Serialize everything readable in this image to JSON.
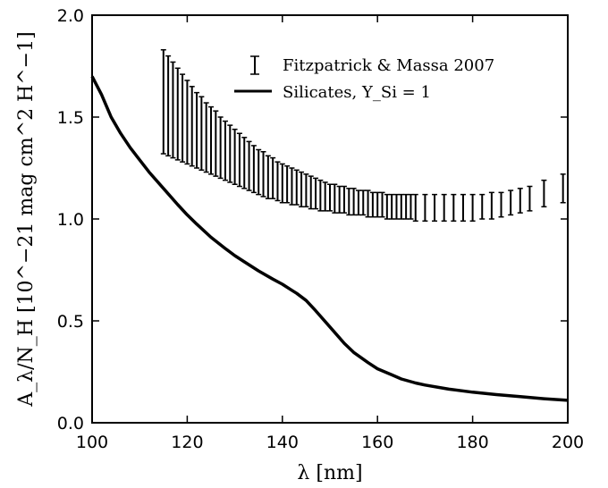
{
  "chart_data": {
    "type": "line",
    "xlabel": "λ [nm]",
    "ylabel": "A_λ/N_H [10^−21 mag cm^2 H^−1]",
    "xlim": [
      100,
      200
    ],
    "ylim": [
      0.0,
      2.0
    ],
    "xticks": [
      "100",
      "120",
      "140",
      "160",
      "180",
      "200"
    ],
    "yticks": [
      "0.0",
      "0.5",
      "1.0",
      "1.5",
      "2.0"
    ],
    "grid": false,
    "legend_position": "top-right",
    "series": [
      {
        "name": "Fitzpatrick & Massa 2007",
        "kind": "errorbar",
        "x": [
          115,
          116,
          117,
          118,
          119,
          120,
          121,
          122,
          123,
          124,
          125,
          126,
          127,
          128,
          129,
          130,
          131,
          132,
          133,
          134,
          135,
          136,
          137,
          138,
          139,
          140,
          141,
          142,
          143,
          144,
          145,
          146,
          147,
          148,
          149,
          150,
          151,
          152,
          153,
          154,
          155,
          156,
          157,
          158,
          159,
          160,
          161,
          162,
          163,
          164,
          165,
          166,
          167,
          168,
          170,
          172,
          174,
          176,
          178,
          180,
          182,
          184,
          186,
          188,
          190,
          192,
          195,
          199
        ],
        "y_low": [
          1.32,
          1.31,
          1.3,
          1.29,
          1.28,
          1.27,
          1.26,
          1.25,
          1.24,
          1.23,
          1.22,
          1.21,
          1.2,
          1.19,
          1.18,
          1.17,
          1.16,
          1.15,
          1.14,
          1.13,
          1.12,
          1.11,
          1.1,
          1.1,
          1.09,
          1.08,
          1.08,
          1.07,
          1.07,
          1.06,
          1.06,
          1.05,
          1.05,
          1.04,
          1.04,
          1.04,
          1.03,
          1.03,
          1.03,
          1.02,
          1.02,
          1.02,
          1.02,
          1.01,
          1.01,
          1.01,
          1.01,
          1.0,
          1.0,
          1.0,
          1.0,
          1.0,
          1.0,
          0.99,
          0.99,
          0.99,
          0.99,
          0.99,
          0.99,
          0.99,
          1.0,
          1.0,
          1.01,
          1.02,
          1.03,
          1.04,
          1.06,
          1.08
        ],
        "y_high": [
          1.83,
          1.8,
          1.77,
          1.74,
          1.71,
          1.68,
          1.65,
          1.62,
          1.6,
          1.57,
          1.55,
          1.53,
          1.5,
          1.48,
          1.46,
          1.44,
          1.42,
          1.4,
          1.38,
          1.36,
          1.34,
          1.33,
          1.31,
          1.3,
          1.28,
          1.27,
          1.26,
          1.25,
          1.24,
          1.23,
          1.22,
          1.21,
          1.2,
          1.19,
          1.18,
          1.17,
          1.17,
          1.16,
          1.16,
          1.15,
          1.15,
          1.14,
          1.14,
          1.14,
          1.13,
          1.13,
          1.13,
          1.12,
          1.12,
          1.12,
          1.12,
          1.12,
          1.12,
          1.12,
          1.12,
          1.12,
          1.12,
          1.12,
          1.12,
          1.12,
          1.12,
          1.13,
          1.13,
          1.14,
          1.15,
          1.16,
          1.19,
          1.22
        ]
      },
      {
        "name": "Silicates, Y_Si = 1",
        "kind": "line",
        "x": [
          100,
          102,
          104,
          106,
          108,
          110,
          112,
          115,
          118,
          120,
          122,
          125,
          128,
          130,
          132,
          135,
          138,
          140,
          142,
          143,
          145,
          147,
          150,
          153,
          155,
          158,
          160,
          163,
          165,
          168,
          170,
          175,
          180,
          185,
          190,
          195,
          200
        ],
        "y": [
          1.7,
          1.61,
          1.5,
          1.42,
          1.35,
          1.29,
          1.23,
          1.15,
          1.07,
          1.02,
          0.975,
          0.91,
          0.855,
          0.82,
          0.79,
          0.745,
          0.705,
          0.68,
          0.65,
          0.635,
          0.6,
          0.55,
          0.47,
          0.39,
          0.345,
          0.295,
          0.265,
          0.235,
          0.215,
          0.195,
          0.185,
          0.165,
          0.15,
          0.138,
          0.128,
          0.118,
          0.11
        ]
      }
    ]
  }
}
